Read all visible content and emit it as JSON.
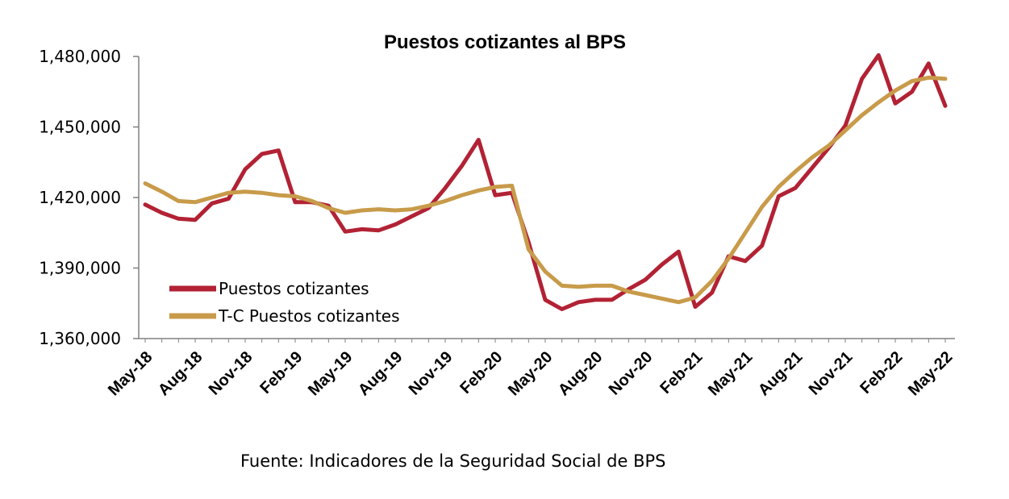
{
  "chart_data": {
    "type": "line",
    "title": "Puestos cotizantes al BPS",
    "xlabel": "",
    "ylabel": "",
    "ylim": [
      1360000,
      1480000
    ],
    "yticks": [
      1360000,
      1390000,
      1420000,
      1450000,
      1480000
    ],
    "ytick_labels": [
      "1,360,000",
      "1,390,000",
      "1,420,000",
      "1,450,000",
      "1,480,000"
    ],
    "x": [
      "May-18",
      "Jun-18",
      "Jul-18",
      "Aug-18",
      "Sep-18",
      "Oct-18",
      "Nov-18",
      "Dec-18",
      "Jan-19",
      "Feb-19",
      "Mar-19",
      "Apr-19",
      "May-19",
      "Jun-19",
      "Jul-19",
      "Aug-19",
      "Sep-19",
      "Oct-19",
      "Nov-19",
      "Dec-19",
      "Jan-20",
      "Feb-20",
      "Mar-20",
      "Apr-20",
      "May-20",
      "Jun-20",
      "Jul-20",
      "Aug-20",
      "Sep-20",
      "Oct-20",
      "Nov-20",
      "Dec-20",
      "Jan-21",
      "Feb-21",
      "Mar-21",
      "Apr-21",
      "May-21",
      "Jun-21",
      "Jul-21",
      "Aug-21",
      "Sep-21",
      "Oct-21",
      "Nov-21",
      "Dec-21",
      "Jan-22",
      "Feb-22",
      "Mar-22",
      "Apr-22",
      "May-22"
    ],
    "xtick_labels": [
      "May-18",
      "Aug-18",
      "Nov-18",
      "Feb-19",
      "May-19",
      "Aug-19",
      "Nov-19",
      "Feb-20",
      "May-20",
      "Aug-20",
      "Nov-20",
      "Feb-21",
      "May-21",
      "Aug-21",
      "Nov-21",
      "Feb-22",
      "May-22"
    ],
    "series": [
      {
        "name": "Puestos cotizantes",
        "color": "#B22234",
        "values": [
          1417000,
          1413500,
          1411000,
          1410500,
          1417500,
          1419500,
          1432000,
          1438500,
          1440000,
          1418000,
          1418000,
          1416500,
          1405500,
          1406500,
          1406000,
          1408500,
          1412000,
          1415500,
          1424000,
          1433500,
          1444500,
          1421000,
          1422000,
          1401000,
          1376500,
          1372500,
          1375500,
          1376500,
          1376500,
          1381000,
          1385000,
          1391500,
          1397000,
          1373500,
          1379500,
          1395000,
          1393000,
          1399500,
          1420500,
          1424000,
          1432500,
          1441000,
          1450500,
          1470500,
          1480500,
          1460000,
          1465000,
          1477000,
          1459000
        ]
      },
      {
        "name": "T-C Puestos cotizantes",
        "color": "#C89B4A",
        "values": [
          1426000,
          1422500,
          1418500,
          1418000,
          1420000,
          1422000,
          1422500,
          1422000,
          1421000,
          1420500,
          1418500,
          1415500,
          1413500,
          1414500,
          1415000,
          1414500,
          1415000,
          1416500,
          1418500,
          1421000,
          1423000,
          1424500,
          1425000,
          1398000,
          1388500,
          1382500,
          1382000,
          1382500,
          1382500,
          1380000,
          1378500,
          1377000,
          1375500,
          1377500,
          1384500,
          1394000,
          1405000,
          1416000,
          1424500,
          1431000,
          1437000,
          1442000,
          1448500,
          1455000,
          1460500,
          1465500,
          1469500,
          1471000,
          1470500
        ]
      }
    ],
    "legend": {
      "placement": "bottom-left"
    },
    "grid": false
  },
  "source_text": "Fuente: Indicadores de la Seguridad Social de BPS"
}
